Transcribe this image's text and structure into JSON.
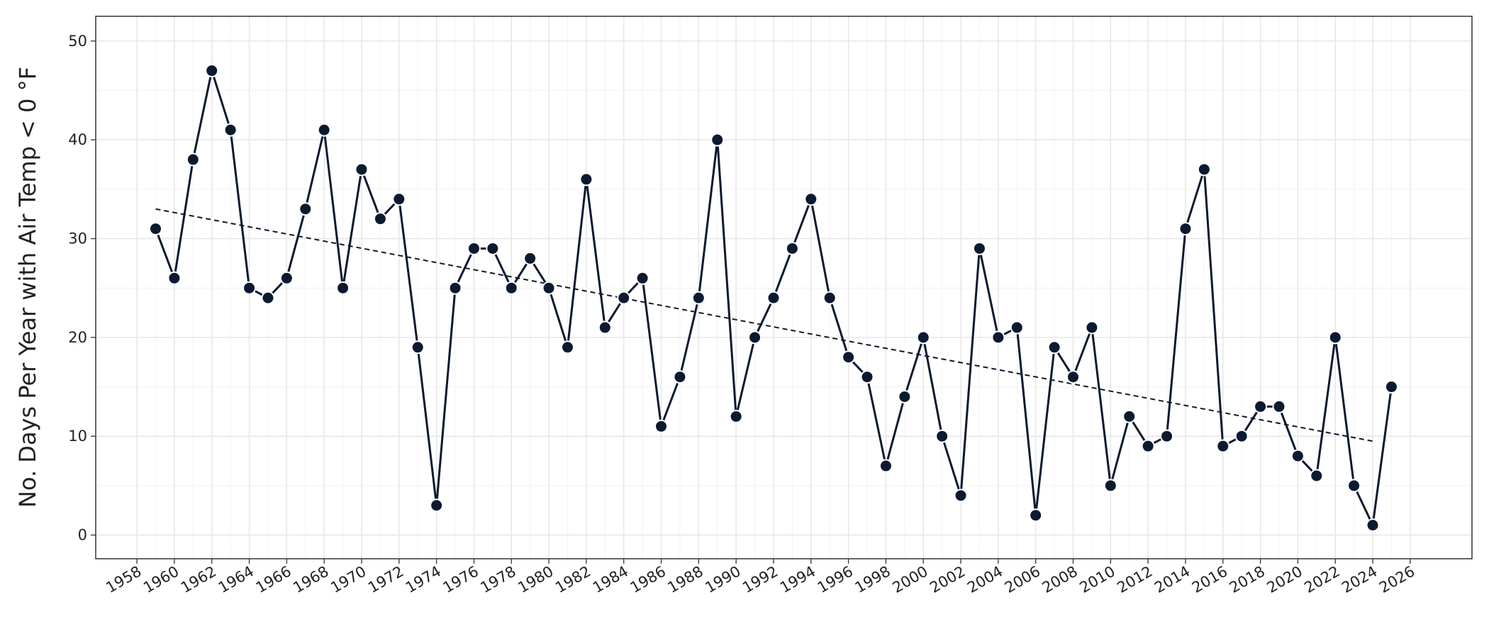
{
  "chart_data": {
    "type": "line",
    "ylabel": "No. Days Per Year with Air Temp < 0 °F",
    "x": [
      1959,
      1960,
      1961,
      1962,
      1963,
      1964,
      1965,
      1966,
      1967,
      1968,
      1969,
      1970,
      1971,
      1972,
      1973,
      1974,
      1975,
      1976,
      1977,
      1978,
      1979,
      1980,
      1981,
      1982,
      1983,
      1984,
      1985,
      1986,
      1987,
      1988,
      1989,
      1990,
      1991,
      1992,
      1993,
      1994,
      1995,
      1996,
      1997,
      1998,
      1999,
      2000,
      2001,
      2002,
      2003,
      2004,
      2005,
      2006,
      2007,
      2008,
      2009,
      2010,
      2011,
      2012,
      2013,
      2014,
      2015,
      2016,
      2017,
      2018,
      2019,
      2020,
      2021,
      2022,
      2023,
      2024,
      2025
    ],
    "series": [
      {
        "color": "#0c1a30",
        "values": [
          31,
          26,
          38,
          47,
          41,
          25,
          24,
          26,
          33,
          41,
          25,
          37,
          32,
          34,
          19,
          3,
          25,
          29,
          29,
          25,
          28,
          25,
          19,
          36,
          21,
          24,
          26,
          11,
          16,
          24,
          40,
          12,
          20,
          24,
          29,
          34,
          24,
          18,
          16,
          7,
          14,
          20,
          10,
          4,
          29,
          20,
          21,
          2,
          19,
          16,
          21,
          5,
          12,
          9,
          10,
          31,
          37,
          9,
          10,
          13,
          13,
          8,
          6,
          20,
          5,
          1,
          15
        ]
      }
    ],
    "trend": {
      "color": "#0c1a30",
      "x": [
        1959,
        2024
      ],
      "values": [
        33,
        9.5
      ]
    },
    "xlim": [
      1955.8,
      2029.3
    ],
    "ylim": [
      -2.4,
      52.5
    ],
    "xticks": [
      1958,
      1960,
      1962,
      1964,
      1966,
      1968,
      1970,
      1972,
      1974,
      1976,
      1978,
      1980,
      1982,
      1984,
      1986,
      1988,
      1990,
      1992,
      1994,
      1996,
      1998,
      2000,
      2002,
      2004,
      2006,
      2008,
      2010,
      2012,
      2014,
      2016,
      2018,
      2020,
      2022,
      2024,
      2026
    ],
    "yticks": [
      0,
      10,
      20,
      30,
      40,
      50
    ],
    "grid": true
  }
}
